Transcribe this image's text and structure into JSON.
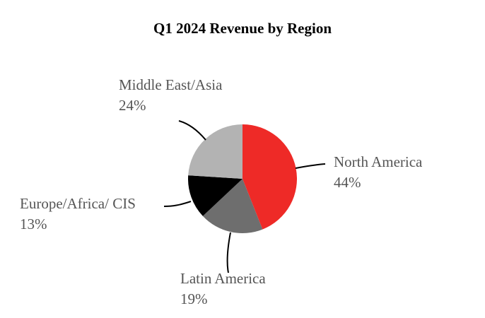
{
  "chart_data": {
    "type": "pie",
    "title": "Q1 2024 Revenue by Region",
    "categories": [
      "North America",
      "Latin America",
      "Europe/Africa/ CIS",
      "Middle East/Asia"
    ],
    "values": [
      44,
      19,
      13,
      24
    ],
    "value_labels": [
      "44%",
      "19%",
      "13%",
      "24%"
    ],
    "colors": [
      "#ee2a27",
      "#6e6e6e",
      "#000000",
      "#b3b3b3"
    ]
  }
}
